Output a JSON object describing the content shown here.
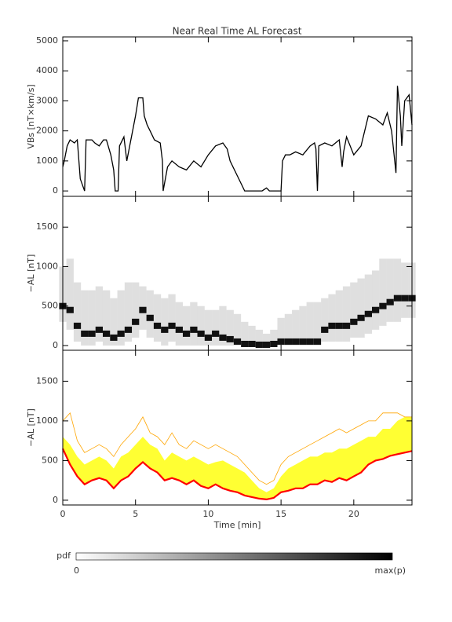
{
  "chart_data": [
    {
      "type": "line",
      "title": "Near Real Time AL Forecast",
      "ylabel": "VBs [nT×km/s]",
      "x": [
        0,
        0.1,
        0.3,
        0.5,
        0.8,
        1.0,
        1.2,
        1.5,
        1.6,
        2.0,
        2.2,
        2.5,
        2.8,
        3.0,
        3.3,
        3.5,
        3.6,
        3.8,
        3.9,
        4.2,
        4.4,
        4.6,
        5.0,
        5.2,
        5.5,
        5.6,
        5.8,
        6.0,
        6.3,
        6.7,
        6.85,
        6.9,
        7.2,
        7.5,
        8.0,
        8.5,
        9.0,
        9.5,
        10.0,
        10.5,
        11.0,
        11.3,
        11.5,
        12.0,
        12.3,
        12.5,
        13.5,
        13.7,
        14.0,
        14.2,
        14.5,
        15.0,
        15.1,
        15.3,
        15.6,
        16.0,
        16.5,
        17.0,
        17.3,
        17.4,
        17.5,
        17.6,
        18.0,
        18.5,
        19.0,
        19.2,
        19.3,
        19.5,
        20.0,
        20.5,
        21.0,
        21.5,
        22.0,
        22.3,
        22.6,
        22.9,
        23.0,
        23.2,
        23.3,
        23.5,
        23.8,
        24.0
      ],
      "values": [
        800,
        1000,
        1500,
        1700,
        1600,
        1700,
        400,
        0,
        1700,
        1700,
        1600,
        1500,
        1700,
        1700,
        1200,
        700,
        0,
        0,
        1500,
        1800,
        1000,
        1500,
        2500,
        3100,
        3100,
        2500,
        2200,
        2000,
        1700,
        1600,
        1000,
        0,
        800,
        1000,
        800,
        700,
        1000,
        800,
        1200,
        1500,
        1600,
        1400,
        1000,
        500,
        200,
        0,
        0,
        0,
        100,
        0,
        0,
        0,
        1000,
        1200,
        1200,
        1300,
        1200,
        1500,
        1600,
        1400,
        0,
        1500,
        1600,
        1500,
        1700,
        800,
        1300,
        1800,
        1200,
        1500,
        2500,
        2400,
        2200,
        2600,
        2000,
        600,
        3500,
        2500,
        1500,
        3000,
        3200,
        2200
      ],
      "color": "#000000",
      "xlim": [
        0,
        24
      ],
      "xticks": [
        0,
        5,
        10,
        15,
        20
      ],
      "ylim": [
        -180,
        5130
      ],
      "yticks": [
        0,
        1000,
        2000,
        3000,
        4000,
        5000
      ]
    },
    {
      "type": "pdf",
      "ylabel": "−AL [nT]",
      "x": [
        0,
        0.5,
        1,
        1.5,
        2,
        2.5,
        3,
        3.5,
        4,
        4.5,
        5,
        5.5,
        6,
        6.5,
        7,
        7.5,
        8,
        8.5,
        9,
        9.5,
        10,
        10.5,
        11,
        11.5,
        12,
        12.5,
        13,
        13.5,
        14,
        14.5,
        15,
        15.5,
        16,
        16.5,
        17,
        17.5,
        18,
        18.5,
        19,
        19.5,
        20,
        20.5,
        21,
        21.5,
        22,
        22.5,
        23,
        23.5,
        24
      ],
      "values": [
        500,
        450,
        250,
        150,
        150,
        200,
        150,
        100,
        150,
        200,
        300,
        450,
        350,
        250,
        200,
        250,
        200,
        150,
        200,
        150,
        100,
        150,
        100,
        80,
        50,
        20,
        20,
        10,
        10,
        20,
        50,
        50,
        50,
        50,
        50,
        50,
        200,
        250,
        250,
        250,
        300,
        350,
        400,
        450,
        500,
        550,
        600,
        600,
        600
      ],
      "lower": [
        300,
        200,
        50,
        0,
        0,
        50,
        0,
        0,
        0,
        50,
        100,
        200,
        100,
        50,
        0,
        50,
        0,
        0,
        0,
        0,
        0,
        0,
        0,
        0,
        0,
        0,
        0,
        0,
        0,
        0,
        0,
        0,
        0,
        0,
        0,
        0,
        50,
        50,
        50,
        50,
        100,
        100,
        150,
        200,
        250,
        300,
        300,
        350,
        350
      ],
      "upper": [
        1000,
        1100,
        800,
        700,
        700,
        750,
        700,
        600,
        700,
        800,
        800,
        750,
        700,
        650,
        600,
        650,
        550,
        500,
        550,
        500,
        450,
        450,
        500,
        450,
        400,
        300,
        250,
        200,
        150,
        200,
        350,
        400,
        450,
        500,
        550,
        550,
        600,
        650,
        700,
        750,
        800,
        850,
        900,
        950,
        1100,
        1100,
        1100,
        1050,
        1050
      ],
      "color": "#111111",
      "range_color": "#b8b8b8",
      "xlim": [
        0,
        24
      ],
      "xticks": [
        0,
        5,
        10,
        15,
        20
      ],
      "ylim": [
        -60,
        1890
      ],
      "yticks": [
        0,
        500,
        1000,
        1500
      ]
    },
    {
      "type": "envelope",
      "ylabel": "−AL [nT]",
      "xlabel": "Time [min]",
      "x": [
        0,
        0.5,
        1,
        1.5,
        2,
        2.5,
        3,
        3.5,
        4,
        4.5,
        5,
        5.5,
        6,
        6.5,
        7,
        7.5,
        8,
        8.5,
        9,
        9.5,
        10,
        10.5,
        11,
        11.5,
        12,
        12.5,
        13,
        13.5,
        14,
        14.5,
        15,
        15.5,
        16,
        16.5,
        17,
        17.5,
        18,
        18.5,
        19,
        19.5,
        20,
        20.5,
        21,
        21.5,
        22,
        22.5,
        23,
        23.5,
        24
      ],
      "series": [
        {
          "color": "#ffa500",
          "values": [
            1000,
            1100,
            750,
            600,
            650,
            700,
            650,
            550,
            700,
            800,
            900,
            1050,
            850,
            800,
            700,
            850,
            700,
            650,
            750,
            700,
            650,
            700,
            650,
            600,
            550,
            450,
            350,
            250,
            200,
            250,
            450,
            550,
            600,
            650,
            700,
            750,
            800,
            850,
            900,
            850,
            900,
            950,
            1000,
            1000,
            1100,
            1100,
            1100,
            1050,
            1050
          ]
        },
        {
          "color": "#ffff33",
          "values": [
            800,
            700,
            550,
            450,
            500,
            550,
            500,
            400,
            550,
            600,
            700,
            800,
            700,
            650,
            500,
            600,
            550,
            500,
            550,
            500,
            450,
            480,
            500,
            450,
            400,
            350,
            250,
            150,
            100,
            150,
            300,
            400,
            450,
            500,
            550,
            550,
            600,
            600,
            650,
            650,
            700,
            750,
            800,
            800,
            900,
            900,
            1000,
            1050,
            1050
          ]
        },
        {
          "color": "#ff0000",
          "values": [
            650,
            450,
            300,
            200,
            250,
            280,
            250,
            150,
            250,
            300,
            400,
            480,
            400,
            350,
            250,
            280,
            250,
            200,
            250,
            180,
            150,
            200,
            150,
            120,
            100,
            60,
            40,
            20,
            10,
            30,
            100,
            120,
            150,
            150,
            200,
            200,
            250,
            230,
            280,
            250,
            300,
            350,
            450,
            500,
            520,
            560,
            580,
            600,
            620
          ]
        }
      ],
      "xlim": [
        0,
        24
      ],
      "xticks": [
        0,
        5,
        10,
        15,
        20
      ],
      "ylim": [
        -60,
        1890
      ],
      "yticks": [
        0,
        500,
        1000,
        1500
      ]
    }
  ],
  "colorbar": {
    "label": "pdf",
    "range_labels": [
      "0",
      "max(p)"
    ]
  }
}
